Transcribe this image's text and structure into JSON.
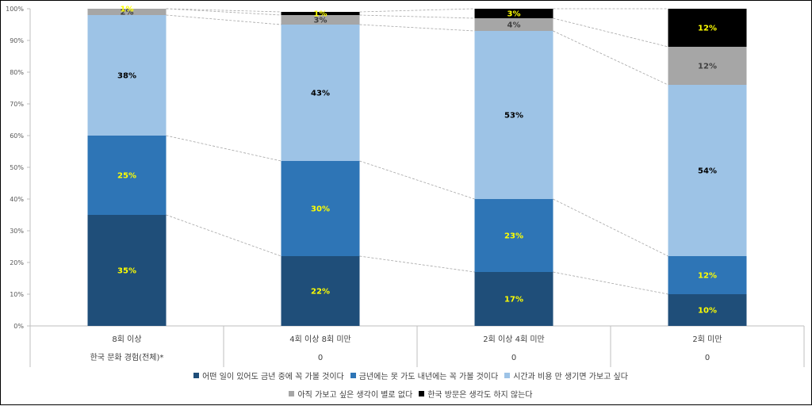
{
  "chart_data": {
    "type": "bar",
    "stacked": true,
    "normalized": true,
    "categories": [
      "8회 이상",
      "4회 이상 8회 미만",
      "2회 이상 4회 미만",
      "2회 미만"
    ],
    "table_row_label": "한국 문화 경험(전체)*",
    "table_row_values": [
      "",
      "0",
      "0",
      "0"
    ],
    "y_ticks": [
      "0%",
      "10%",
      "20%",
      "30%",
      "40%",
      "50%",
      "60%",
      "70%",
      "80%",
      "90%",
      "100%"
    ],
    "ylim": [
      0,
      100
    ],
    "legend_position": "bottom",
    "series": [
      {
        "name": "어떤 일이 있어도 금년 중에 꼭 가볼 것이다",
        "color": "#1F4E79",
        "label_color": "#FFFF00",
        "values": [
          35,
          22,
          17,
          10
        ],
        "labels": [
          "35%",
          "22%",
          "17%",
          "10%"
        ]
      },
      {
        "name": "금년에는 못 가도 내년에는 꼭 가볼 것이다",
        "color": "#2E75B6",
        "label_color": "#FFFF00",
        "values": [
          25,
          30,
          23,
          12
        ],
        "labels": [
          "25%",
          "30%",
          "23%",
          "12%"
        ]
      },
      {
        "name": "시간과 비용 만 생기면 가보고 싶다",
        "color": "#9DC3E6",
        "label_color": "#000000",
        "values": [
          38,
          43,
          53,
          54
        ],
        "labels": [
          "38%",
          "43%",
          "53%",
          "54%"
        ]
      },
      {
        "name": "아직 가보고 싶은 생각이 별로 없다",
        "color": "#A6A6A6",
        "label_color": "#404040",
        "values": [
          2,
          3,
          4,
          12
        ],
        "labels": [
          "2%",
          "3%",
          "4%",
          "12%"
        ]
      },
      {
        "name": "한국 방문은 생각도 하지 않는다",
        "color": "#000000",
        "label_color": "#FFFF00",
        "values": [
          1,
          1,
          3,
          12
        ],
        "labels": [
          "1%",
          "1%",
          "3%",
          "12%"
        ]
      }
    ]
  }
}
